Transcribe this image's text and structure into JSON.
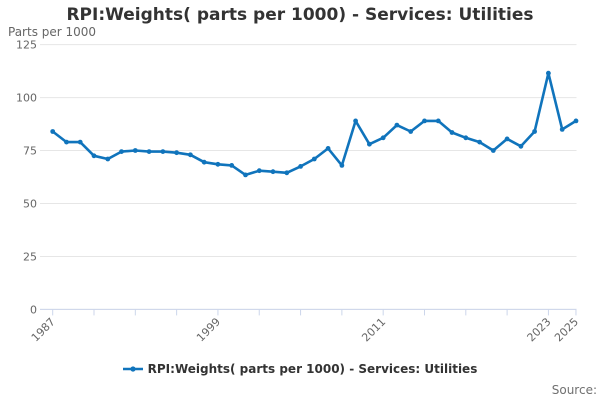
{
  "header": {
    "title": "RPI:Weights( parts per 1000) - Services: Utilities"
  },
  "axes": {
    "y_title": "Parts per 1000"
  },
  "legend": {
    "label": "RPI:Weights( parts per 1000) - Services: Utilities"
  },
  "footer": {
    "source_label": "Source:"
  },
  "colors": {
    "line": "#1074bc",
    "grid": "#e6e6e6",
    "axis": "#ccd6eb",
    "tick_text": "#666666",
    "title_text": "#333333"
  },
  "chart_data": {
    "type": "line",
    "title": "RPI:Weights( parts per 1000) - Services: Utilities",
    "ylabel": "Parts per 1000",
    "series_name": "RPI:Weights( parts per 1000) - Services: Utilities",
    "x": [
      1987,
      1988,
      1989,
      1990,
      1991,
      1992,
      1993,
      1994,
      1995,
      1996,
      1997,
      1998,
      1999,
      2000,
      2001,
      2002,
      2003,
      2004,
      2005,
      2006,
      2007,
      2008,
      2009,
      2010,
      2011,
      2012,
      2013,
      2014,
      2015,
      2016,
      2017,
      2018,
      2019,
      2020,
      2021,
      2022,
      2023,
      2024,
      2025
    ],
    "values": [
      84,
      79,
      79,
      72.5,
      71,
      74.5,
      75,
      74.5,
      74.5,
      74,
      73,
      69.5,
      68.5,
      68,
      63.5,
      65.5,
      65,
      64.5,
      67.5,
      71,
      76,
      68,
      89,
      78,
      81,
      87,
      84,
      89,
      89,
      83.5,
      81,
      79,
      75,
      80.5,
      77,
      84,
      111.5,
      85,
      89
    ],
    "ylim": [
      0,
      125
    ],
    "yticks": [
      0,
      25,
      50,
      75,
      100,
      125
    ],
    "xtick_interval_years": 3,
    "xtick_labels_shown": [
      "1987",
      "1999",
      "2011",
      "2023",
      "2025"
    ],
    "grid": "horizontal",
    "legend_position": "bottom",
    "marker": "circle"
  }
}
